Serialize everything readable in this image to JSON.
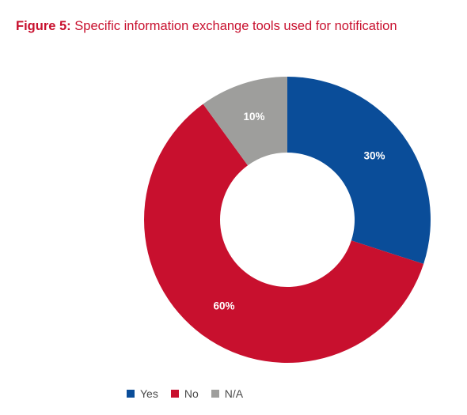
{
  "title": {
    "lead": "Figure 5:",
    "text": "Specific information exchange tools used for notification"
  },
  "chart_data": {
    "type": "pie",
    "style": "donut",
    "title": "Figure 5: Specific information exchange tools used for notification",
    "categories": [
      "Yes",
      "No",
      "N/A"
    ],
    "values": [
      30,
      60,
      10
    ],
    "data_labels": [
      "30%",
      "60%",
      "10%"
    ],
    "colors": [
      "#0a4d99",
      "#c8102e",
      "#9e9e9c"
    ],
    "start_angle": "12 o'clock",
    "direction": "clockwise",
    "legend_position": "bottom"
  },
  "legend": [
    {
      "label": "Yes",
      "color": "#0a4d99"
    },
    {
      "label": "No",
      "color": "#c8102e"
    },
    {
      "label": "N/A",
      "color": "#9e9e9c"
    }
  ]
}
